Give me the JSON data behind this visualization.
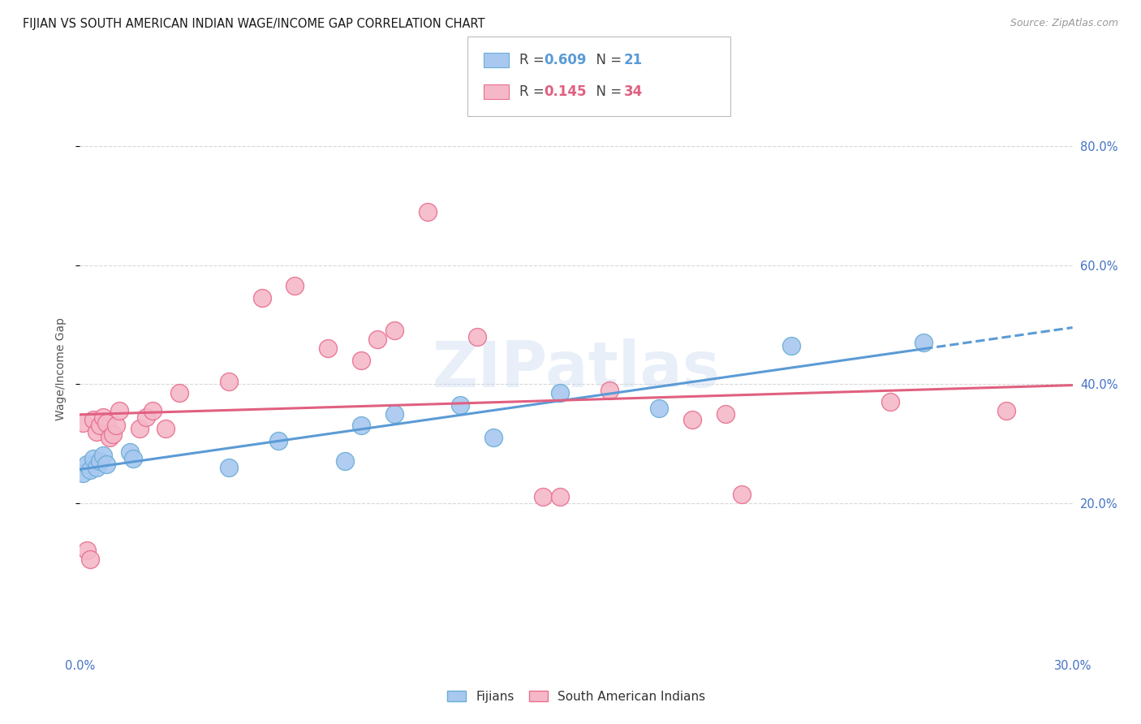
{
  "title": "FIJIAN VS SOUTH AMERICAN INDIAN WAGE/INCOME GAP CORRELATION CHART",
  "source": "Source: ZipAtlas.com",
  "ylabel": "Wage/Income Gap",
  "xlim": [
    0.0,
    0.3
  ],
  "ylim": [
    -0.05,
    0.9
  ],
  "ytick_vals": [
    0.2,
    0.4,
    0.6,
    0.8
  ],
  "ytick_labels": [
    "20.0%",
    "40.0%",
    "60.0%",
    "80.0%"
  ],
  "xtick_vals": [
    0.0,
    0.05,
    0.1,
    0.15,
    0.2,
    0.25,
    0.3
  ],
  "xtick_labels": [
    "0.0%",
    "",
    "",
    "",
    "",
    "",
    "30.0%"
  ],
  "fijian_color": "#A8C8F0",
  "fijian_edge_color": "#6BAED6",
  "fijian_line_color": "#5B9BD5",
  "sa_color": "#F5B8C8",
  "sa_edge_color": "#E87090",
  "sa_line_color": "#E06080",
  "fijian_R": 0.609,
  "fijian_N": 21,
  "sa_R": 0.145,
  "sa_N": 34,
  "fijian_x": [
    0.001,
    0.002,
    0.003,
    0.004,
    0.005,
    0.006,
    0.007,
    0.008,
    0.015,
    0.016,
    0.045,
    0.06,
    0.08,
    0.085,
    0.095,
    0.115,
    0.125,
    0.145,
    0.175,
    0.215,
    0.255
  ],
  "fijian_y": [
    0.25,
    0.265,
    0.255,
    0.275,
    0.26,
    0.27,
    0.28,
    0.265,
    0.285,
    0.275,
    0.26,
    0.305,
    0.27,
    0.33,
    0.35,
    0.365,
    0.31,
    0.385,
    0.36,
    0.465,
    0.47
  ],
  "sa_x": [
    0.001,
    0.002,
    0.003,
    0.004,
    0.005,
    0.006,
    0.007,
    0.008,
    0.009,
    0.01,
    0.011,
    0.012,
    0.018,
    0.02,
    0.022,
    0.026,
    0.03,
    0.045,
    0.055,
    0.065,
    0.075,
    0.085,
    0.09,
    0.095,
    0.105,
    0.12,
    0.14,
    0.145,
    0.16,
    0.185,
    0.195,
    0.2,
    0.245,
    0.28
  ],
  "sa_y": [
    0.335,
    0.12,
    0.105,
    0.34,
    0.32,
    0.33,
    0.345,
    0.335,
    0.31,
    0.315,
    0.33,
    0.355,
    0.325,
    0.345,
    0.355,
    0.325,
    0.385,
    0.405,
    0.545,
    0.565,
    0.46,
    0.44,
    0.475,
    0.49,
    0.69,
    0.48,
    0.21,
    0.21,
    0.39,
    0.34,
    0.35,
    0.215,
    0.37,
    0.355
  ],
  "background_color": "#FFFFFF",
  "grid_color": "#D8D8D8",
  "tick_color": "#4472C4",
  "watermark_color": "#C8D8F0",
  "watermark_alpha": 0.4,
  "watermark_text": "ZIPatlas"
}
